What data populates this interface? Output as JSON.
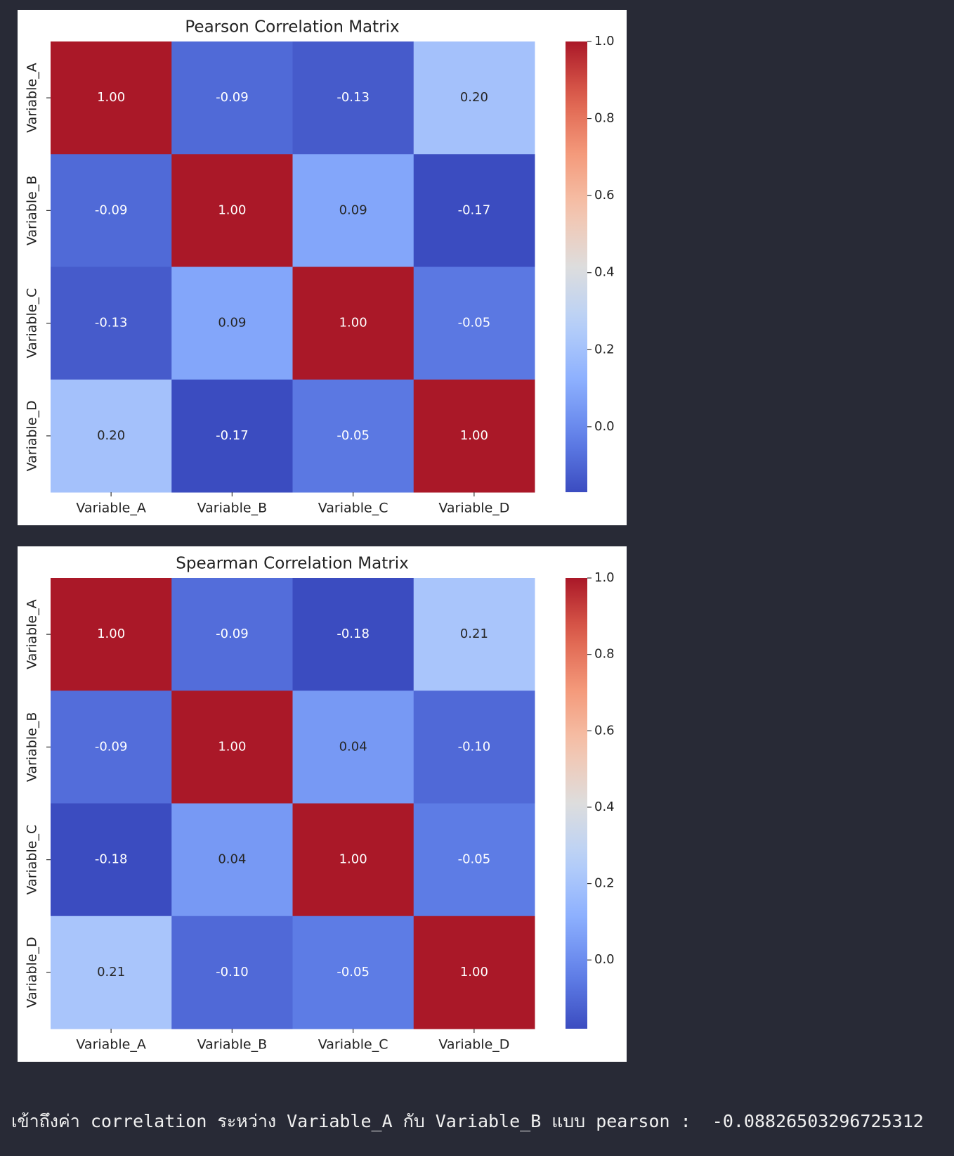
{
  "chart_data": [
    {
      "type": "heatmap",
      "title": "Pearson Correlation Matrix",
      "x_categories": [
        "Variable_A",
        "Variable_B",
        "Variable_C",
        "Variable_D"
      ],
      "y_categories": [
        "Variable_A",
        "Variable_B",
        "Variable_C",
        "Variable_D"
      ],
      "values": [
        [
          1,
          -0.09,
          -0.13,
          0.2
        ],
        [
          -0.09,
          1,
          0.09,
          -0.17
        ],
        [
          -0.13,
          0.09,
          1,
          -0.05
        ],
        [
          0.2,
          -0.17,
          -0.05,
          1
        ]
      ],
      "value_labels": [
        [
          "1.00",
          "-0.09",
          "-0.13",
          "0.20"
        ],
        [
          "-0.09",
          "1.00",
          "0.09",
          "-0.17"
        ],
        [
          "-0.13",
          "0.09",
          "1.00",
          "-0.05"
        ],
        [
          "0.20",
          "-0.17",
          "-0.05",
          "1.00"
        ]
      ],
      "cmap": "coolwarm",
      "clim": [
        -0.17,
        1
      ],
      "cticks": [
        {
          "value": 0,
          "label": "0.0"
        },
        0.2,
        0.4,
        0.6,
        0.8,
        {
          "value": 1,
          "label": "1.0"
        }
      ]
    },
    {
      "type": "heatmap",
      "title": "Spearman Correlation Matrix",
      "x_categories": [
        "Variable_A",
        "Variable_B",
        "Variable_C",
        "Variable_D"
      ],
      "y_categories": [
        "Variable_A",
        "Variable_B",
        "Variable_C",
        "Variable_D"
      ],
      "values": [
        [
          1,
          -0.09,
          -0.18,
          0.21
        ],
        [
          -0.09,
          1,
          0.04,
          -0.1
        ],
        [
          -0.18,
          0.04,
          1,
          -0.05
        ],
        [
          0.21,
          -0.1,
          -0.05,
          1
        ]
      ],
      "value_labels": [
        [
          "1.00",
          "-0.09",
          "-0.18",
          "0.21"
        ],
        [
          "-0.09",
          "1.00",
          "0.04",
          "-0.10"
        ],
        [
          "-0.18",
          "0.04",
          "1.00",
          "-0.05"
        ],
        [
          "0.21",
          "-0.10",
          "-0.05",
          "1.00"
        ]
      ],
      "cmap": "coolwarm",
      "clim": [
        -0.18,
        1
      ],
      "cticks": [
        {
          "value": 0,
          "label": "0.0"
        },
        0.2,
        0.4,
        0.6,
        0.8,
        {
          "value": 1,
          "label": "1.0"
        }
      ]
    }
  ],
  "output_text": "เข้าถึงค่า correlation ระหว่าง Variable_A กับ Variable_B แบบ pearson :  -0.08826503296725312"
}
